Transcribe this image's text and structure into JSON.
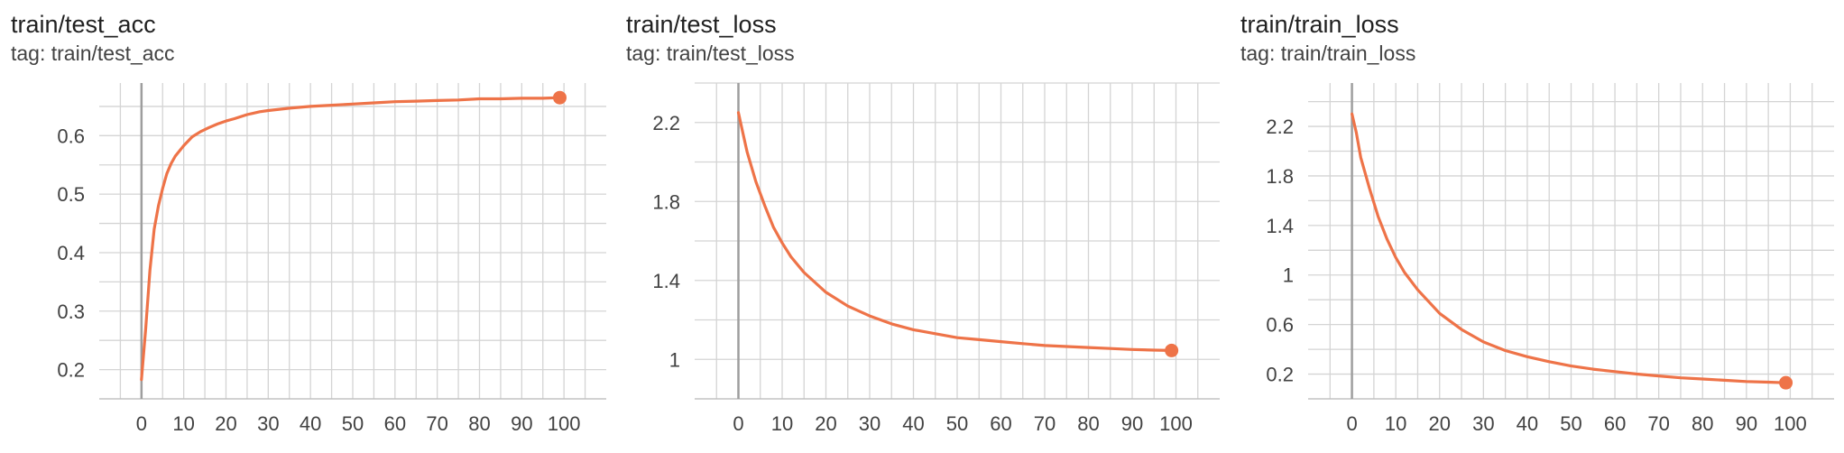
{
  "chart_data": [
    {
      "type": "line",
      "title": "train/test_acc",
      "subtitle": "tag: train/test_acc",
      "xlim": [
        -10,
        110
      ],
      "ylim": [
        0.15,
        0.69
      ],
      "xticks": [
        0,
        10,
        20,
        30,
        40,
        50,
        60,
        70,
        80,
        90,
        100
      ],
      "yticks": [
        0.2,
        0.3,
        0.4,
        0.5,
        0.6
      ],
      "yminor": [
        0.15,
        0.25,
        0.35,
        0.45,
        0.55,
        0.65
      ],
      "grid": true,
      "series": [
        {
          "color": "#ee7348",
          "x": [
            0,
            1,
            2,
            3,
            4,
            5,
            6,
            7,
            8,
            10,
            12,
            14,
            16,
            18,
            20,
            22,
            25,
            28,
            30,
            35,
            40,
            45,
            50,
            55,
            60,
            65,
            70,
            75,
            80,
            85,
            90,
            95,
            99
          ],
          "y": [
            0.183,
            0.27,
            0.37,
            0.44,
            0.48,
            0.51,
            0.535,
            0.552,
            0.565,
            0.583,
            0.598,
            0.607,
            0.614,
            0.62,
            0.625,
            0.629,
            0.636,
            0.641,
            0.643,
            0.647,
            0.65,
            0.652,
            0.654,
            0.656,
            0.658,
            0.659,
            0.66,
            0.661,
            0.663,
            0.663,
            0.664,
            0.664,
            0.665
          ]
        }
      ]
    },
    {
      "type": "line",
      "title": "train/test_loss",
      "subtitle": "tag: train/test_loss",
      "xlim": [
        -10,
        110
      ],
      "ylim": [
        0.8,
        2.4
      ],
      "xticks": [
        0,
        10,
        20,
        30,
        40,
        50,
        60,
        70,
        80,
        90,
        100
      ],
      "yticks": [
        1,
        1.4,
        1.8,
        2.2
      ],
      "ytick_labels": [
        "1",
        "1.4",
        "1.8",
        "2.2"
      ],
      "yminor": [
        0.8,
        1.2,
        1.6,
        2.0,
        2.4
      ],
      "grid": true,
      "series": [
        {
          "color": "#ee7348",
          "x": [
            0,
            1,
            2,
            4,
            6,
            8,
            10,
            12,
            15,
            20,
            25,
            30,
            35,
            40,
            45,
            50,
            55,
            60,
            65,
            70,
            75,
            80,
            85,
            90,
            95,
            99
          ],
          "y": [
            2.25,
            2.15,
            2.05,
            1.9,
            1.78,
            1.67,
            1.59,
            1.52,
            1.44,
            1.34,
            1.27,
            1.22,
            1.18,
            1.15,
            1.13,
            1.11,
            1.1,
            1.09,
            1.08,
            1.07,
            1.065,
            1.06,
            1.055,
            1.05,
            1.047,
            1.045
          ]
        }
      ]
    },
    {
      "type": "line",
      "title": "train/train_loss",
      "subtitle": "tag: train/train_loss",
      "xlim": [
        -10,
        110
      ],
      "ylim": [
        0.0,
        2.55
      ],
      "xticks": [
        0,
        10,
        20,
        30,
        40,
        50,
        60,
        70,
        80,
        90,
        100
      ],
      "yticks": [
        0.2,
        0.6,
        1,
        1.4,
        1.8,
        2.2
      ],
      "ytick_labels": [
        "0.2",
        "0.6",
        "1",
        "1.4",
        "1.8",
        "2.2"
      ],
      "yminor": [
        0.0,
        0.4,
        0.8,
        1.2,
        1.6,
        2.0,
        2.4
      ],
      "grid": true,
      "series": [
        {
          "color": "#ee7348",
          "x": [
            0,
            1,
            2,
            4,
            6,
            8,
            10,
            12,
            15,
            20,
            25,
            30,
            35,
            40,
            45,
            50,
            55,
            60,
            65,
            70,
            75,
            80,
            85,
            90,
            95,
            99
          ],
          "y": [
            2.3,
            2.15,
            1.95,
            1.7,
            1.47,
            1.29,
            1.14,
            1.02,
            0.88,
            0.69,
            0.56,
            0.46,
            0.39,
            0.34,
            0.3,
            0.265,
            0.24,
            0.22,
            0.2,
            0.185,
            0.17,
            0.16,
            0.15,
            0.14,
            0.135,
            0.13
          ]
        }
      ]
    }
  ]
}
